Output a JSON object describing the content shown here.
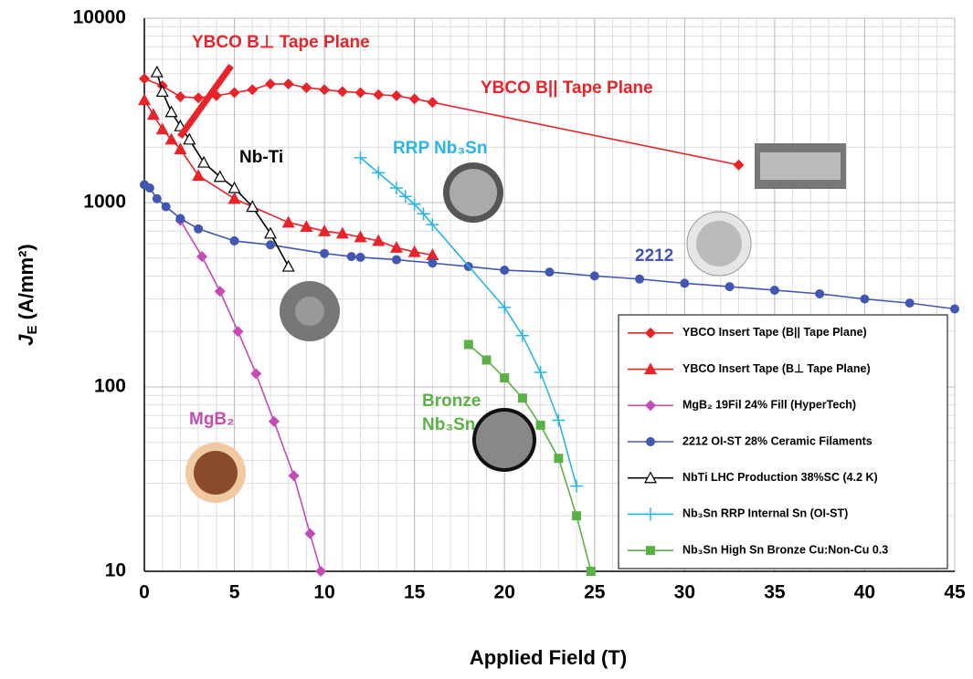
{
  "chart_data": {
    "type": "line",
    "x_label": "Applied Field (T)",
    "y_label": "J",
    "y_label_sub": "E",
    "y_label_rest": " (A/mm²)",
    "log_y": true,
    "grid": true,
    "xlim": [
      0,
      45
    ],
    "xticks": [
      0,
      5,
      10,
      15,
      20,
      25,
      30,
      35,
      40,
      45
    ],
    "ylim": [
      10,
      10000
    ],
    "yticks": [
      10,
      100,
      1000,
      10000
    ],
    "series": [
      {
        "name": "YBCO Insert Tape (B|| Tape Plane)",
        "color": "#e8232a",
        "marker": "diamond",
        "x": [
          0,
          1,
          2,
          3,
          4,
          5,
          6,
          7,
          8,
          9,
          10,
          11,
          12,
          13,
          14,
          15,
          16,
          33
        ],
        "values": [
          4700,
          4300,
          3750,
          3700,
          3800,
          3950,
          4100,
          4400,
          4400,
          4200,
          4100,
          4000,
          3950,
          3850,
          3800,
          3650,
          3500,
          1600
        ]
      },
      {
        "name": "YBCO Insert Tape (B⊥ Tape Plane)",
        "color": "#e8232a",
        "marker": "triangle",
        "x": [
          0,
          0.5,
          1,
          1.5,
          2,
          3,
          5,
          6,
          8,
          9,
          10,
          11,
          12,
          13,
          14,
          15,
          16
        ],
        "values": [
          3600,
          3000,
          2500,
          2200,
          1950,
          1400,
          1050,
          950,
          780,
          740,
          700,
          680,
          650,
          620,
          570,
          540,
          520
        ]
      },
      {
        "name": "MgB₂ 19Fil 24% Fill (HyperTech)",
        "color": "#c44bb5",
        "marker": "diamond",
        "x": [
          2,
          3.2,
          4.2,
          5.2,
          6.2,
          7.2,
          8.3,
          9.2,
          9.8
        ],
        "values": [
          800,
          510,
          330,
          200,
          118,
          65,
          33,
          16,
          10
        ]
      },
      {
        "name": "2212 OI-ST 28% Ceramic Filaments",
        "color": "#4257b0",
        "marker": "circle",
        "x": [
          0,
          0.3,
          0.7,
          1.2,
          2,
          3,
          5,
          7,
          10,
          11.5,
          12,
          14,
          16,
          18,
          20,
          22.5,
          25,
          27.5,
          30,
          32.5,
          35,
          37.5,
          40,
          42.5,
          45
        ],
        "values": [
          1250,
          1200,
          1050,
          950,
          820,
          720,
          620,
          590,
          530,
          510,
          505,
          490,
          470,
          450,
          430,
          420,
          400,
          385,
          365,
          350,
          335,
          320,
          300,
          285,
          265
        ]
      },
      {
        "name": "NbTi LHC Production 38%SC (4.2 K)",
        "color": "#000000",
        "marker": "open-triangle",
        "x": [
          0.7,
          1,
          1.5,
          2,
          2.5,
          3.3,
          4.2,
          5,
          6,
          7,
          8
        ],
        "values": [
          5100,
          4000,
          3100,
          2600,
          2200,
          1650,
          1380,
          1200,
          950,
          680,
          450
        ]
      },
      {
        "name": "Nb₃Sn RRP Internal Sn (OI-ST)",
        "color": "#29b6e6",
        "marker": "plus",
        "x": [
          12,
          13,
          14,
          14.5,
          15,
          15.5,
          16,
          20,
          21,
          22,
          23,
          24
        ],
        "values": [
          1750,
          1450,
          1200,
          1080,
          980,
          870,
          760,
          270,
          190,
          120,
          66,
          29
        ]
      },
      {
        "name": "Nb₃Sn High Sn Bronze Cu:Non-Cu 0.3",
        "color": "#5cb146",
        "marker": "square",
        "x": [
          18,
          19,
          20,
          21,
          22,
          23,
          24,
          24.8
        ],
        "values": [
          170,
          140,
          112,
          87,
          62,
          41,
          20,
          10
        ]
      }
    ],
    "annotations": [
      "YBCO B⊥ Tape Plane",
      "YBCO B|| Tape Plane",
      "Nb-Ti",
      "RRP Nb₃Sn",
      "2212",
      "MgB₂",
      "Bronze",
      "Nb₃Sn"
    ]
  }
}
